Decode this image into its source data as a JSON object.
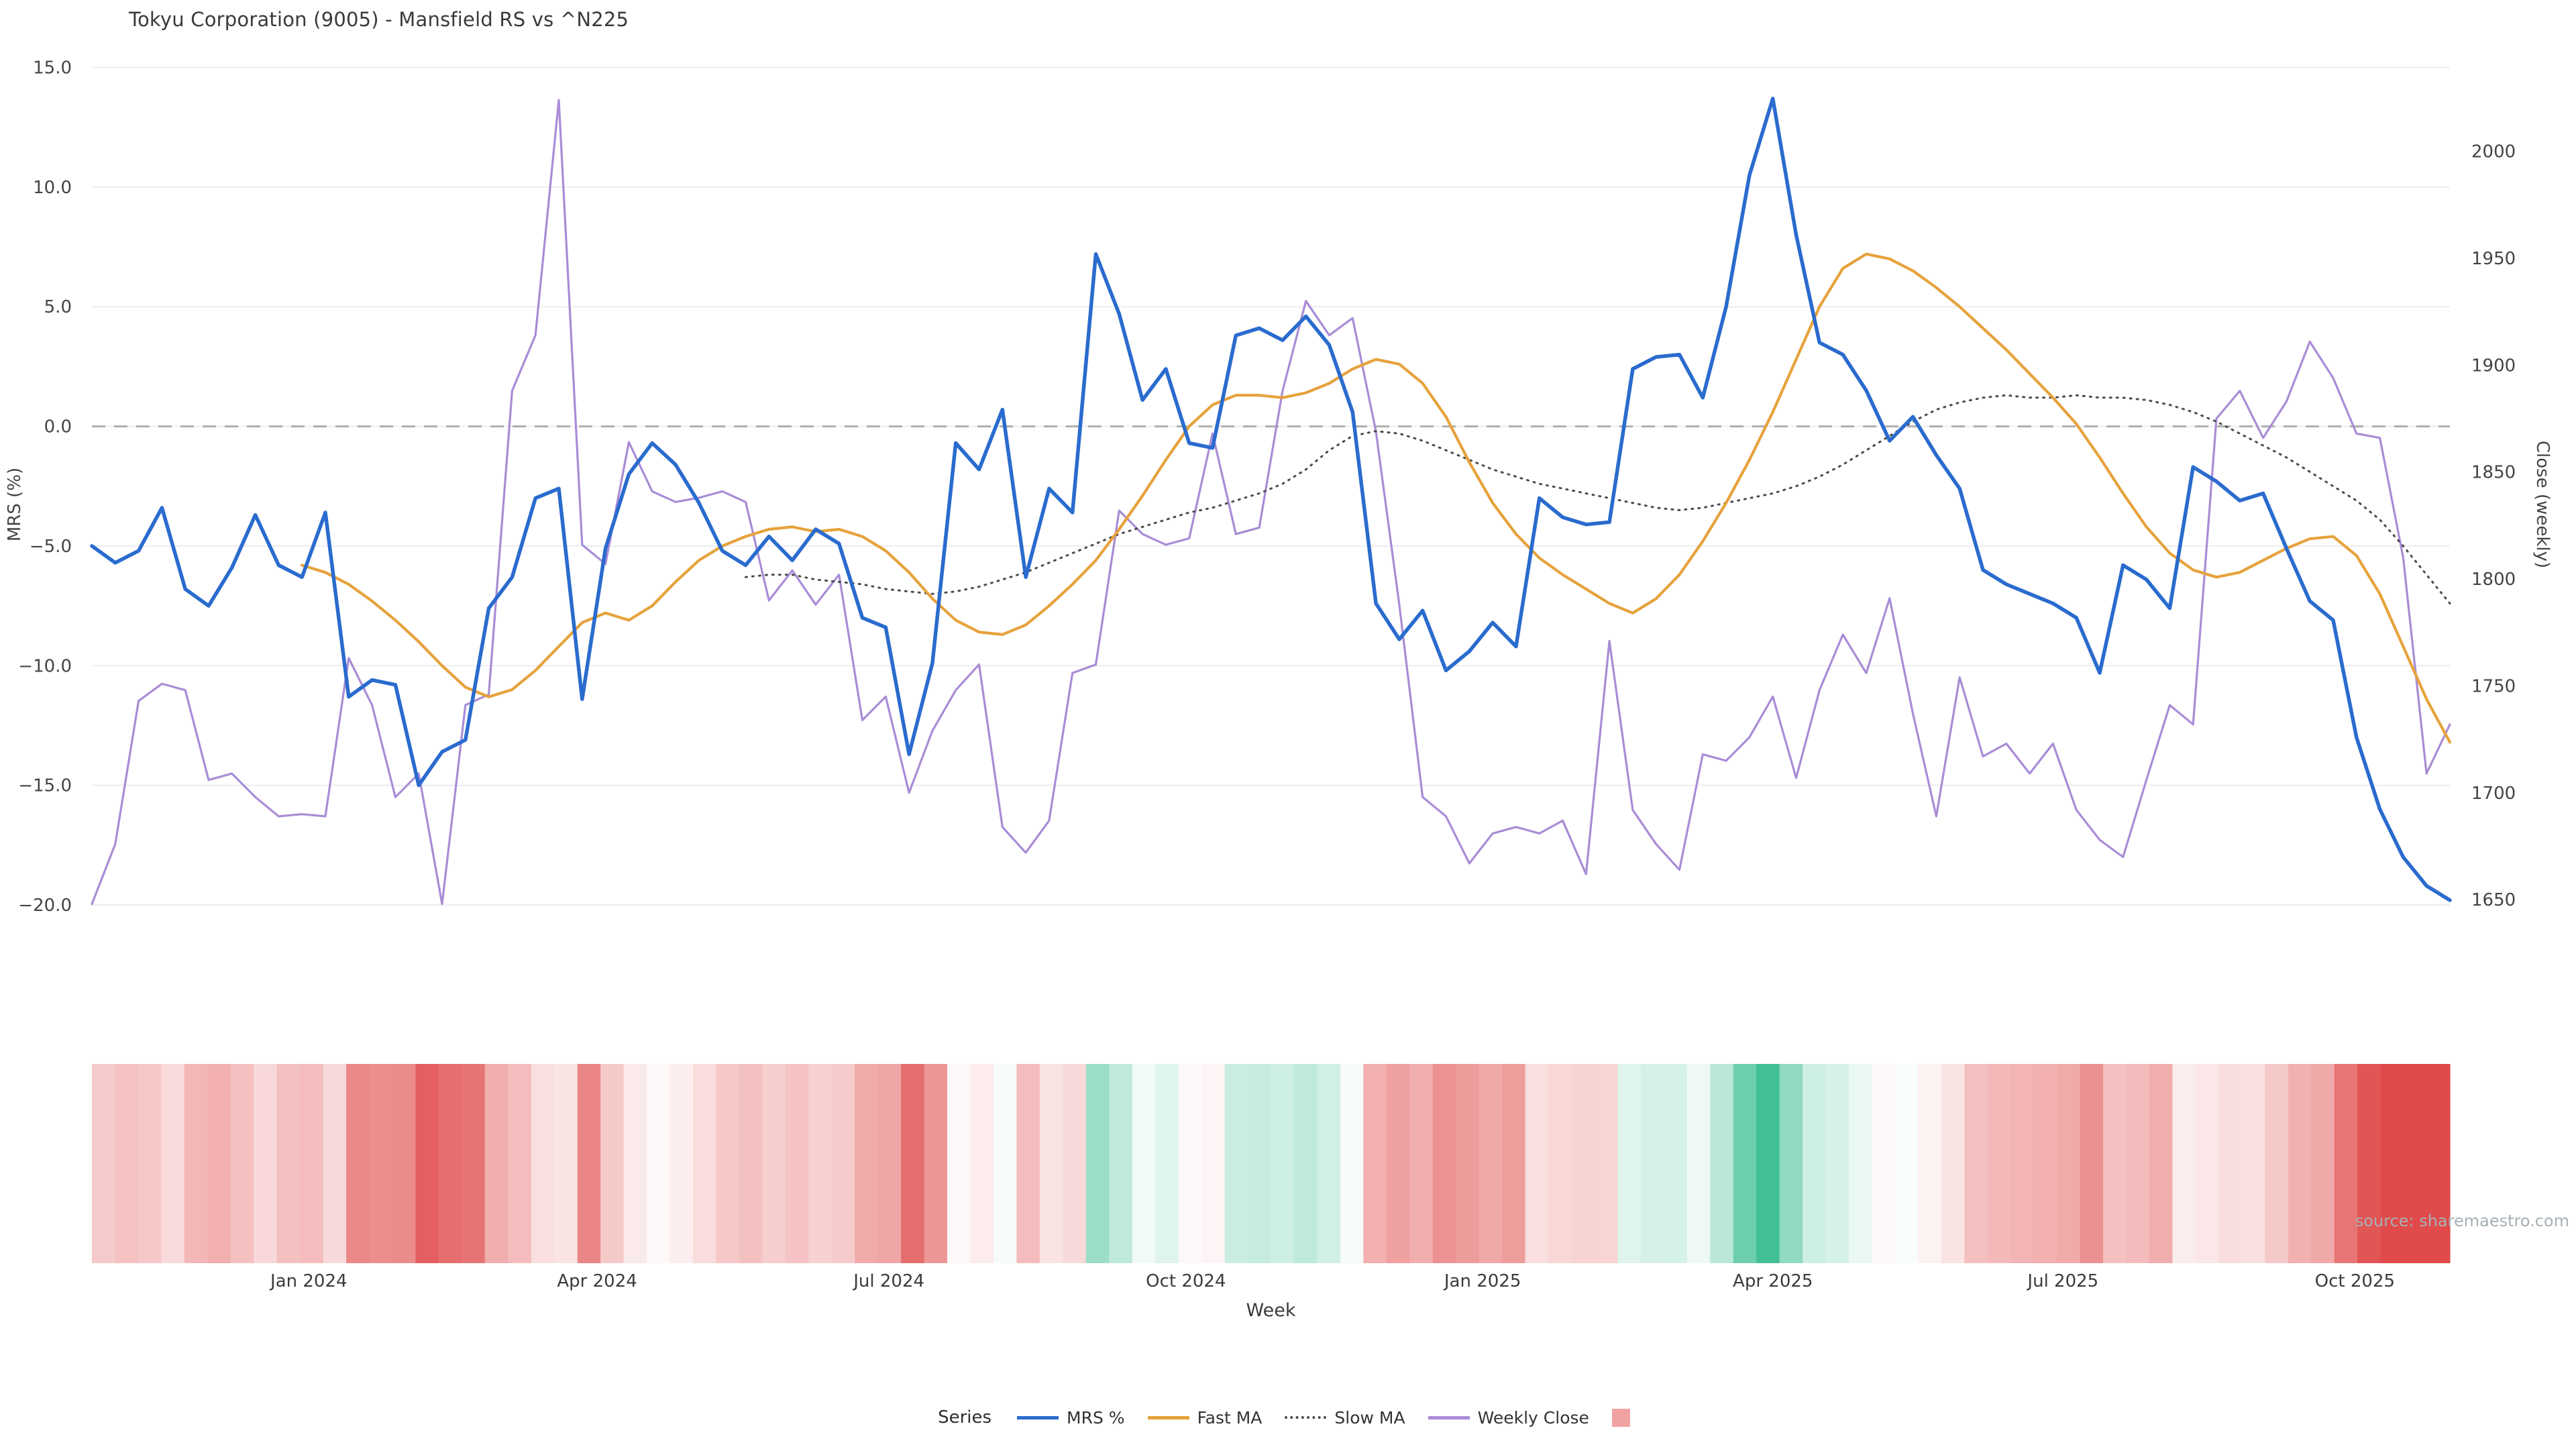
{
  "title": "Tokyu Corporation (9005) - Mansfield RS vs ^N225",
  "source": "source: sharemaestro.com",
  "axes": {
    "left_label": "MRS (%)",
    "right_label": "Close (weekly)",
    "x_label": "Week",
    "left_ticks": [
      15.0,
      10.0,
      5.0,
      0.0,
      -5.0,
      -10.0,
      -15.0,
      -20.0
    ],
    "right_ticks": [
      2000,
      1950,
      1900,
      1850,
      1800,
      1750,
      1700,
      1650
    ],
    "x_ticks": [
      {
        "label": "Jan 2024",
        "week": 9.29
      },
      {
        "label": "Apr 2024",
        "week": 21.64
      },
      {
        "label": "Jul 2024",
        "week": 34.14
      },
      {
        "label": "Oct 2024",
        "week": 46.86
      },
      {
        "label": "Jan 2025",
        "week": 59.57
      },
      {
        "label": "Apr 2025",
        "week": 72.0
      },
      {
        "label": "Jul 2025",
        "week": 84.43
      },
      {
        "label": "Oct 2025",
        "week": 96.93
      }
    ]
  },
  "legend": {
    "title": "Series",
    "items": [
      {
        "label": "MRS %",
        "color": "#2a6bce",
        "style": "solid"
      },
      {
        "label": "Fast MA",
        "color": "#e6a23c",
        "style": "solid"
      },
      {
        "label": "Slow MA",
        "color": "#4a4a4a",
        "style": "dotted"
      },
      {
        "label": "Weekly Close",
        "color": "#a98cd6",
        "style": "solid"
      },
      {
        "label": "",
        "color": "#f1a3a3",
        "style": "square"
      }
    ]
  },
  "chart_data": {
    "type": "line",
    "x_unit": "week_index",
    "n_weeks": 102,
    "grid": "horizontal",
    "legend_position": "bottom",
    "zero_line": true,
    "left_axis_range": [
      -20,
      15
    ],
    "right_axis_range": [
      1650,
      2030
    ],
    "series": [
      {
        "name": "MRS %",
        "axis": "left",
        "color": "#2a6bce",
        "dash": "solid",
        "width": 5.5,
        "start_week": 0,
        "values": [
          -5.0,
          -5.7,
          -5.2,
          -3.4,
          -6.8,
          -7.5,
          -5.9,
          -3.7,
          -5.8,
          -6.3,
          -3.6,
          -11.3,
          -10.6,
          -10.8,
          -15.0,
          -13.6,
          -13.1,
          -7.6,
          -6.3,
          -3.0,
          -2.6,
          -11.4,
          -5.1,
          -2.0,
          -0.7,
          -1.6,
          -3.2,
          -5.2,
          -5.8,
          -4.6,
          -5.6,
          -4.3,
          -4.9,
          -8.0,
          -8.4,
          -13.7,
          -9.9,
          -0.7,
          -1.8,
          0.7,
          -6.3,
          -2.6,
          -3.6,
          7.2,
          4.7,
          1.1,
          2.4,
          -0.7,
          -0.9,
          3.8,
          4.1,
          3.6,
          4.6,
          3.4,
          0.6,
          -7.4,
          -8.9,
          -7.7,
          -10.2,
          -9.4,
          -8.2,
          -9.2,
          -3.0,
          -3.8,
          -4.1,
          -4.0,
          2.4,
          2.9,
          3.0,
          1.2,
          5.0,
          10.5,
          13.7,
          8.0,
          3.5,
          3.0,
          1.5,
          -0.6,
          0.4,
          -1.2,
          -2.6,
          -6.0,
          -6.6,
          -7.0,
          -7.4,
          -8.0,
          -10.3,
          -5.8,
          -6.4,
          -7.6,
          -1.7,
          -2.3,
          -3.1,
          -2.8,
          -5.1,
          -7.3,
          -8.1,
          -13.0,
          -16.0,
          -18.0,
          -19.2,
          -19.8
        ]
      },
      {
        "name": "Fast MA",
        "axis": "left",
        "color": "#e6a23c",
        "dash": "solid",
        "width": 4.2,
        "start_week": 9,
        "values": [
          -5.8,
          -6.1,
          -6.6,
          -7.3,
          -8.1,
          -9.0,
          -10.0,
          -10.9,
          -11.3,
          -11.0,
          -10.2,
          -9.2,
          -8.2,
          -7.8,
          -8.1,
          -7.5,
          -6.5,
          -5.6,
          -5.0,
          -4.6,
          -4.3,
          -4.2,
          -4.4,
          -4.3,
          -4.6,
          -5.2,
          -6.1,
          -7.2,
          -8.1,
          -8.6,
          -8.7,
          -8.3,
          -7.5,
          -6.6,
          -5.6,
          -4.3,
          -2.9,
          -1.4,
          0.0,
          0.9,
          1.3,
          1.3,
          1.2,
          1.4,
          1.8,
          2.4,
          2.8,
          2.6,
          1.8,
          0.4,
          -1.5,
          -3.2,
          -4.5,
          -5.5,
          -6.2,
          -6.8,
          -7.4,
          -7.8,
          -7.2,
          -6.2,
          -4.8,
          -3.2,
          -1.4,
          0.6,
          2.8,
          5.0,
          6.6,
          7.2,
          7.0,
          6.5,
          5.8,
          5.0,
          4.1,
          3.2,
          2.2,
          1.2,
          0.1,
          -1.3,
          -2.8,
          -4.2,
          -5.3,
          -6.0,
          -6.3,
          -6.1,
          -5.6,
          -5.1,
          -4.7,
          -4.6,
          -5.4,
          -7.0,
          -9.2,
          -11.4,
          -13.2
        ]
      },
      {
        "name": "Slow MA",
        "axis": "left",
        "color": "#4a4a4a",
        "dash": "dotted",
        "width": 3,
        "start_week": 28,
        "values": [
          -6.3,
          -6.2,
          -6.2,
          -6.4,
          -6.5,
          -6.6,
          -6.8,
          -6.9,
          -7.0,
          -6.9,
          -6.7,
          -6.4,
          -6.1,
          -5.7,
          -5.3,
          -4.9,
          -4.5,
          -4.2,
          -3.9,
          -3.6,
          -3.4,
          -3.1,
          -2.8,
          -2.4,
          -1.8,
          -1.0,
          -0.4,
          -0.2,
          -0.3,
          -0.6,
          -1.0,
          -1.4,
          -1.8,
          -2.1,
          -2.4,
          -2.6,
          -2.8,
          -3.0,
          -3.2,
          -3.4,
          -3.5,
          -3.4,
          -3.2,
          -3.0,
          -2.8,
          -2.5,
          -2.1,
          -1.6,
          -1.0,
          -0.4,
          0.2,
          0.7,
          1.0,
          1.2,
          1.3,
          1.2,
          1.2,
          1.3,
          1.2,
          1.2,
          1.1,
          0.9,
          0.6,
          0.2,
          -0.3,
          -0.8,
          -1.3,
          -1.9,
          -2.5,
          -3.1,
          -3.9,
          -5.0,
          -6.2,
          -7.4
        ]
      },
      {
        "name": "Weekly Close",
        "axis": "right",
        "color": "#a98cd6",
        "dash": "solid",
        "width": 3.2,
        "start_week": 0,
        "values": [
          1648,
          1676,
          1743,
          1751,
          1748,
          1706,
          1709,
          1698,
          1689,
          1690,
          1689,
          1763,
          1741,
          1698,
          1709,
          1648,
          1741,
          1746,
          1888,
          1914,
          2024,
          1816,
          1807,
          1864,
          1841,
          1836,
          1838,
          1841,
          1836,
          1790,
          1804,
          1788,
          1802,
          1734,
          1745,
          1700,
          1729,
          1748,
          1760,
          1684,
          1672,
          1687,
          1756,
          1760,
          1832,
          1821,
          1816,
          1819,
          1868,
          1821,
          1824,
          1888,
          1930,
          1914,
          1922,
          1869,
          1788,
          1698,
          1689,
          1667,
          1681,
          1684,
          1681,
          1687,
          1662,
          1771,
          1692,
          1676,
          1664,
          1718,
          1715,
          1726,
          1745,
          1707,
          1748,
          1774,
          1756,
          1791,
          1737,
          1689,
          1754,
          1717,
          1723,
          1709,
          1723,
          1692,
          1678,
          1670,
          1706,
          1741,
          1732,
          1875,
          1888,
          1866,
          1883,
          1911,
          1894,
          1868,
          1866,
          1810,
          1709,
          1732
        ]
      }
    ],
    "heatmap": {
      "derived_from": "MRS %",
      "negative_color": "#e04a4a",
      "positive_color": "#2fb98b",
      "negative_scale_max": 17,
      "positive_scale_max": 15
    }
  }
}
